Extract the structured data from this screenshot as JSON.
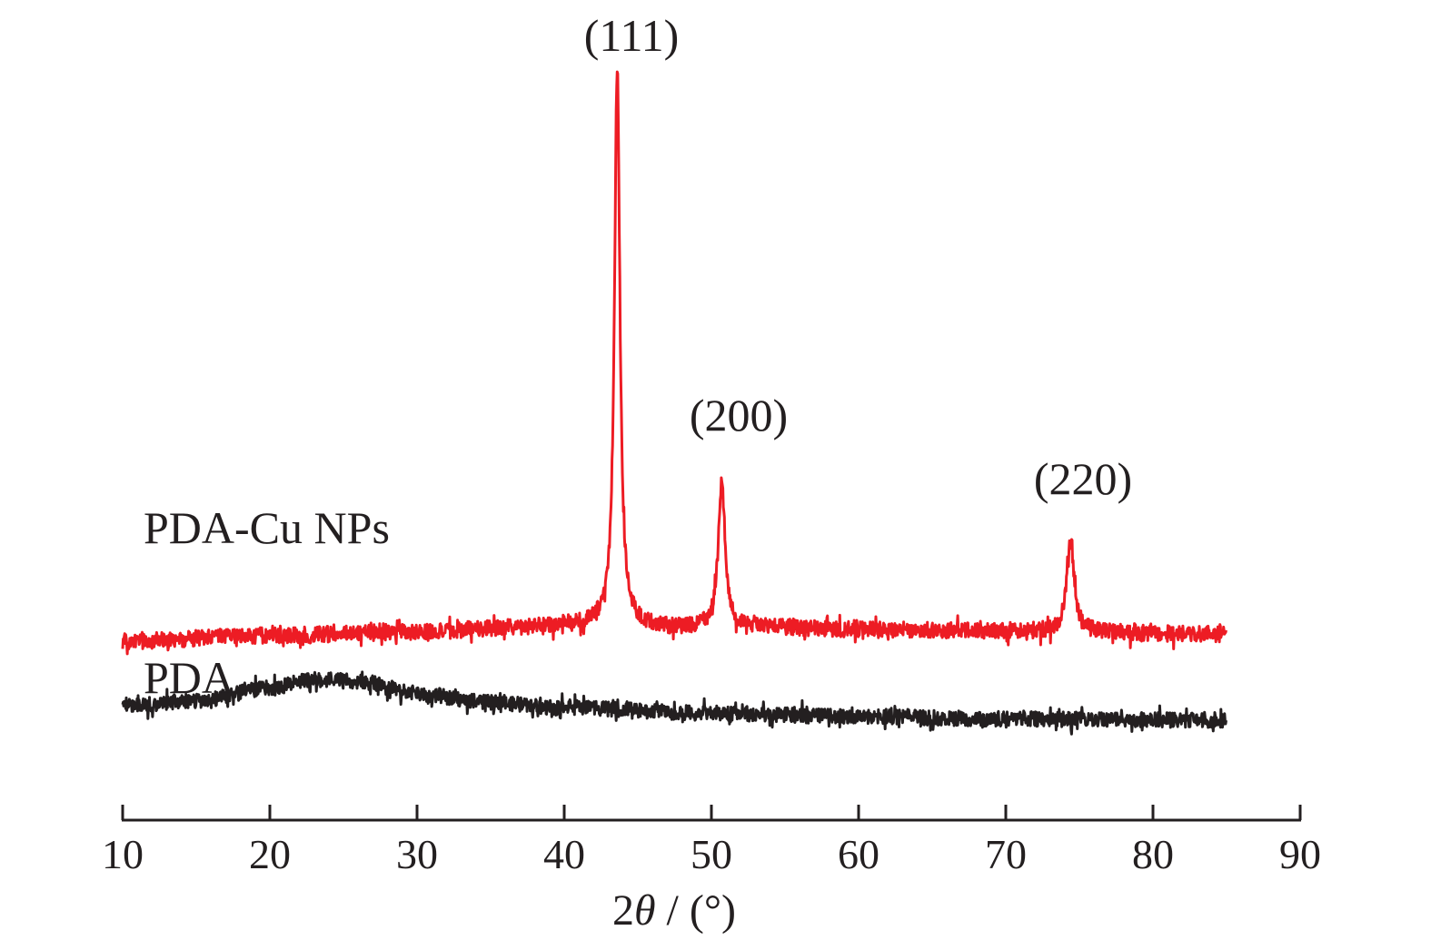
{
  "chart_data": {
    "type": "line",
    "title": "",
    "xlabel": "2θ / (°)",
    "xlabel_parts": {
      "prefix": "2",
      "symbol": "θ",
      "suffix": " / (°)"
    },
    "ylabel": "",
    "xlim": [
      10,
      90
    ],
    "xticks": [
      10,
      20,
      30,
      40,
      50,
      60,
      70,
      80,
      90
    ],
    "y_axis_shown": false,
    "grid": false,
    "legend": "inline labels",
    "series": [
      {
        "name": "PDA-Cu NPs",
        "color": "#ed1c24",
        "x_range": [
          10,
          85
        ],
        "baseline": [
          [
            10,
            0.62
          ],
          [
            20,
            0.72
          ],
          [
            30,
            0.78
          ],
          [
            37,
            0.86
          ],
          [
            42,
            0.92
          ],
          [
            45,
            0.88
          ],
          [
            48,
            0.85
          ],
          [
            52,
            0.86
          ],
          [
            60,
            0.82
          ],
          [
            70,
            0.8
          ],
          [
            85,
            0.74
          ]
        ],
        "peaks": [
          {
            "x": 43.6,
            "height": 9.8,
            "hkl": "(111)"
          },
          {
            "x": 50.7,
            "height": 2.55,
            "hkl": "(200)"
          },
          {
            "x": 74.4,
            "height": 1.7,
            "hkl": "(220)"
          }
        ],
        "noise": 0.14
      },
      {
        "name": "PDA",
        "color": "#231f20",
        "x_range": [
          10,
          85
        ],
        "baseline": [
          [
            10,
            -0.5
          ],
          [
            15,
            -0.43
          ],
          [
            20,
            -0.2
          ],
          [
            23,
            -0.05
          ],
          [
            26,
            -0.08
          ],
          [
            30,
            -0.3
          ],
          [
            35,
            -0.45
          ],
          [
            40,
            -0.55
          ],
          [
            50,
            -0.64
          ],
          [
            60,
            -0.7
          ],
          [
            70,
            -0.74
          ],
          [
            85,
            -0.76
          ]
        ],
        "peaks": [],
        "noise": 0.13
      }
    ],
    "annotations": [
      {
        "text": "(111)",
        "x": 43.6
      },
      {
        "text": "(200)",
        "x": 50.7
      },
      {
        "text": "(220)",
        "x": 74.4
      },
      {
        "text": "PDA-Cu NPs",
        "series": "PDA-Cu NPs"
      },
      {
        "text": "PDA",
        "series": "PDA"
      }
    ]
  },
  "labels": {
    "peak_111": "(111)",
    "peak_200": "(200)",
    "peak_220": "(220)",
    "series_cu": "PDA-Cu NPs",
    "series_pda": "PDA",
    "tick_10": "10",
    "tick_20": "20",
    "tick_30": "30",
    "tick_40": "40",
    "tick_50": "50",
    "tick_60": "60",
    "tick_70": "70",
    "tick_80": "80",
    "tick_90": "90",
    "xlabel_prefix": "2",
    "xlabel_symbol": "θ",
    "xlabel_suffix": " / (°)"
  }
}
